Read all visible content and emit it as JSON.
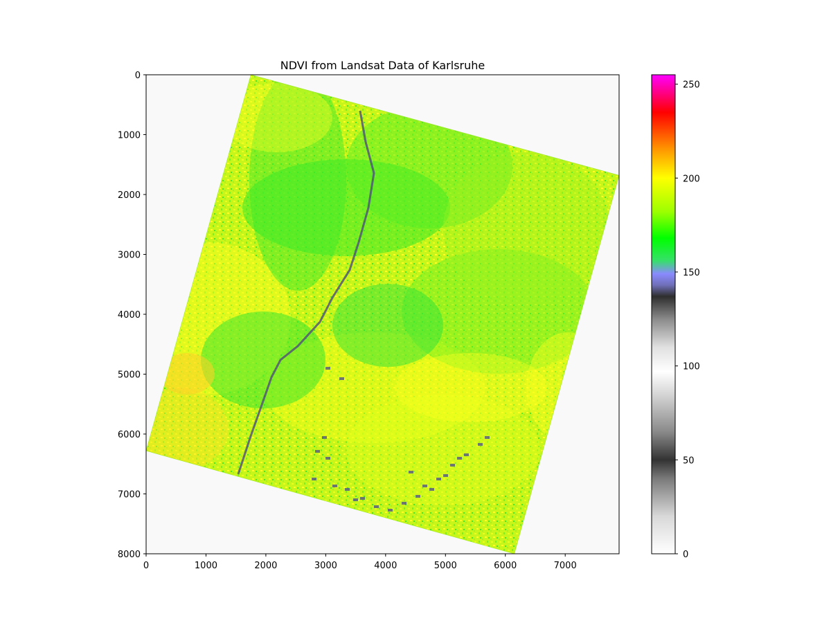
{
  "chart_data": {
    "type": "heatmap",
    "title": "NDVI from Landsat Data of Karlsruhe",
    "xlabel": "",
    "ylabel": "",
    "xlim": [
      0,
      7900
    ],
    "ylim": [
      8000,
      0
    ],
    "x_ticks": [
      0,
      1000,
      2000,
      3000,
      4000,
      5000,
      6000,
      7000
    ],
    "y_ticks": [
      0,
      1000,
      2000,
      3000,
      4000,
      5000,
      6000,
      7000,
      8000
    ],
    "grid": false,
    "image_footprint": [
      [
        1750,
        0
      ],
      [
        7900,
        1680
      ],
      [
        6150,
        8000
      ],
      [
        0,
        6280
      ]
    ],
    "background_color": "#f9f9f9",
    "colorbar": {
      "range": [
        0,
        255
      ],
      "ticks": [
        0,
        50,
        100,
        150,
        200,
        250
      ],
      "colormap_stops": [
        {
          "value": 0,
          "color": "#ffffff"
        },
        {
          "value": 20,
          "color": "#d8d8d8"
        },
        {
          "value": 40,
          "color": "#7a7a7a"
        },
        {
          "value": 50,
          "color": "#333333"
        },
        {
          "value": 65,
          "color": "#8a8a8a"
        },
        {
          "value": 85,
          "color": "#d6d6d6"
        },
        {
          "value": 97,
          "color": "#ffffff"
        },
        {
          "value": 110,
          "color": "#e0e0e0"
        },
        {
          "value": 125,
          "color": "#8a8a8a"
        },
        {
          "value": 137,
          "color": "#2e2e2e"
        },
        {
          "value": 143,
          "color": "#6f6fb8"
        },
        {
          "value": 149,
          "color": "#8a8aff"
        },
        {
          "value": 156,
          "color": "#36e06a"
        },
        {
          "value": 168,
          "color": "#00ff00"
        },
        {
          "value": 182,
          "color": "#9cff00"
        },
        {
          "value": 200,
          "color": "#ffff00"
        },
        {
          "value": 215,
          "color": "#ff9900"
        },
        {
          "value": 235,
          "color": "#ff0000"
        },
        {
          "value": 255,
          "color": "#ff00ff"
        }
      ]
    }
  }
}
